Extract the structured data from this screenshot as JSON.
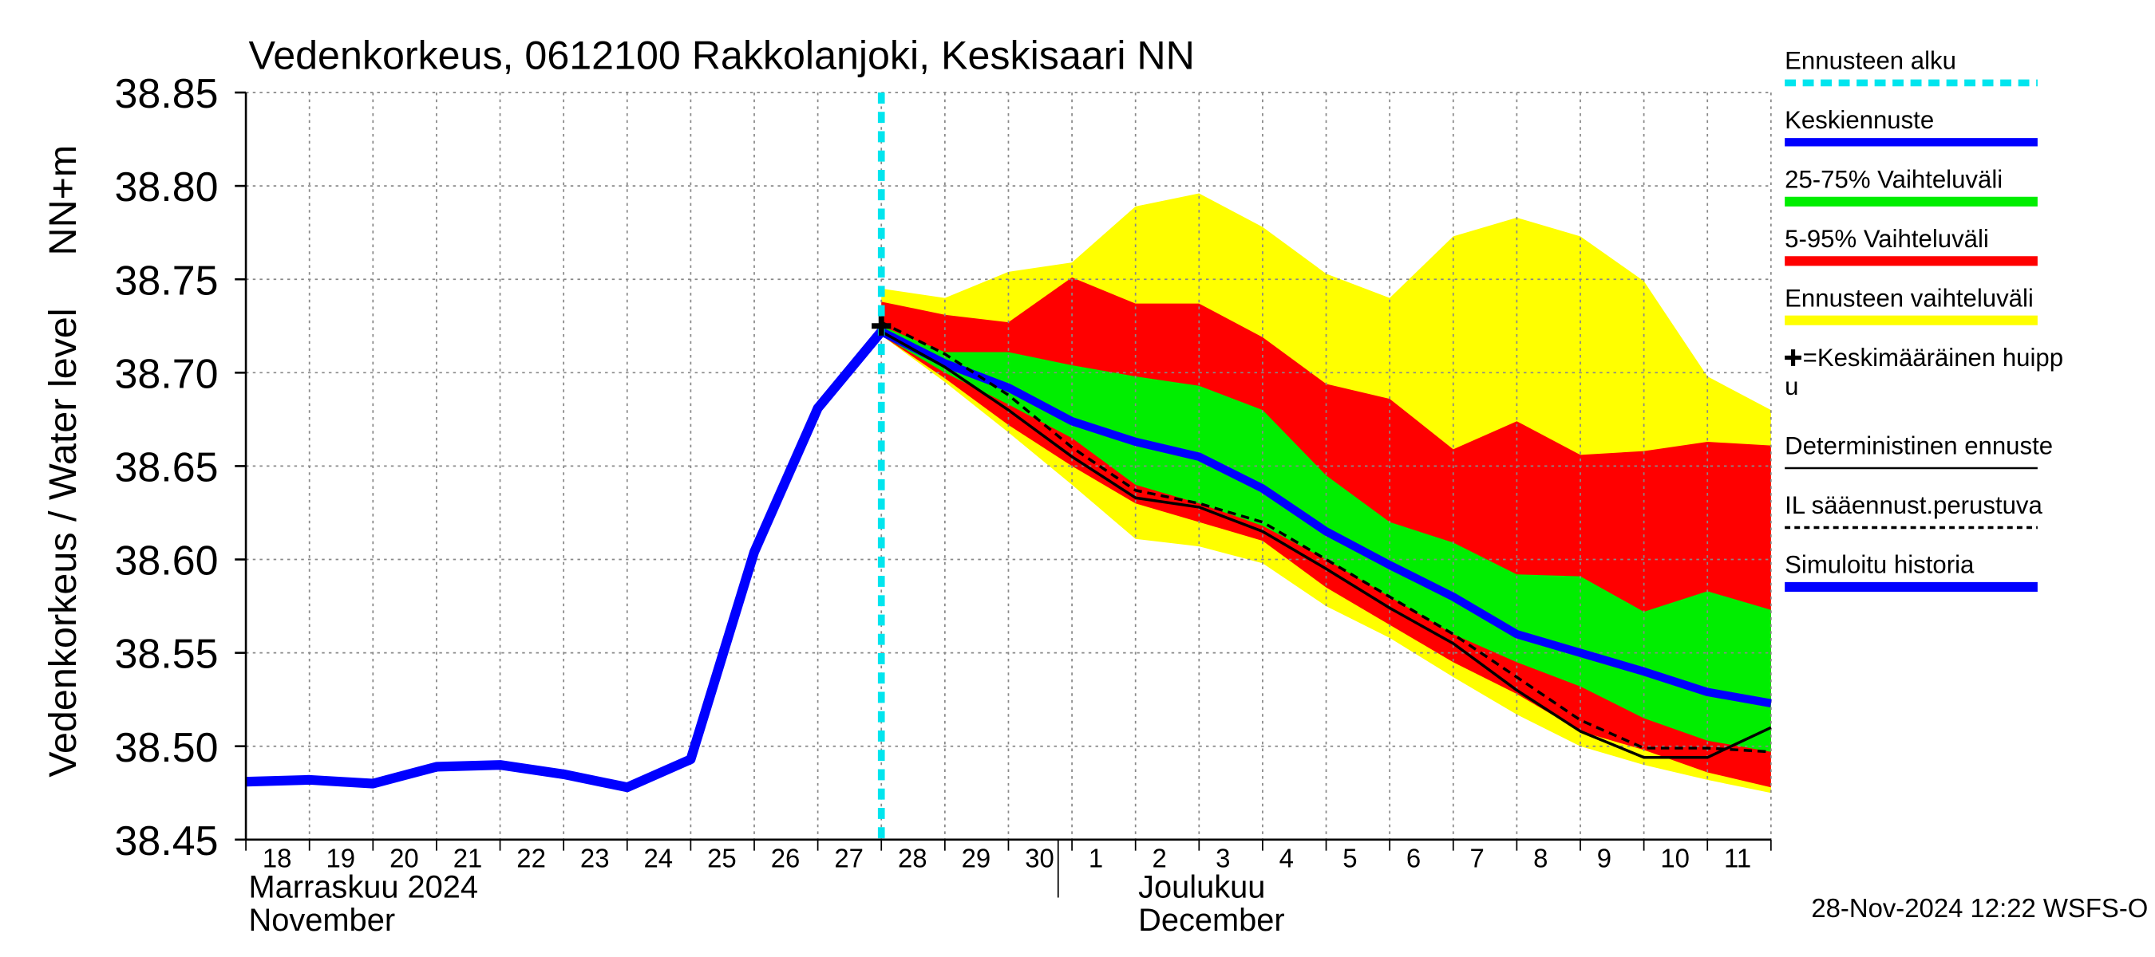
{
  "chart_data": {
    "type": "line",
    "title": "Vedenkorkeus, 0612100 Rakkolanjoki, Keskisaari NN",
    "y_label": "Vedenkorkeus / Water level",
    "y_unit": "NN+m",
    "footer": "28-Nov-2024 12:22 WSFS-O",
    "categories": [
      "18",
      "19",
      "20",
      "21",
      "22",
      "23",
      "24",
      "25",
      "26",
      "27",
      "28",
      "29",
      "30",
      "1",
      "2",
      "3",
      "4",
      "5",
      "6",
      "7",
      "8",
      "9",
      "10",
      "11",
      null
    ],
    "months": [
      {
        "at": "18",
        "lines": [
          "Marraskuu 2024",
          "November"
        ]
      },
      {
        "at": "1",
        "lines": [
          "Joulukuu",
          "December"
        ]
      }
    ],
    "ylim": [
      38.45,
      38.85
    ],
    "yticks": [
      38.45,
      {
        "value": 38.5,
        "label": "38.50"
      },
      38.55,
      {
        "value": 38.6,
        "label": "38.60"
      },
      38.65,
      {
        "value": 38.7,
        "label": "38.70"
      },
      38.75,
      {
        "value": 38.8,
        "label": "38.80"
      },
      38.85
    ],
    "grid": true,
    "forecast_start": {
      "name": "Ennusteen alku",
      "at": "28",
      "color": "#00e5ee"
    },
    "peak": {
      "name": [
        "=Keskimääräinen huipp",
        "u"
      ],
      "at": "28",
      "value": 38.725,
      "color": "#000000"
    },
    "bands": [
      {
        "name": "Ennusteen vaihteluväli",
        "color": "#ffff00",
        "upper": [
          null,
          null,
          null,
          null,
          null,
          null,
          null,
          null,
          null,
          null,
          38.745,
          38.74,
          38.754,
          38.759,
          38.789,
          38.796,
          38.778,
          38.753,
          38.74,
          38.773,
          38.783,
          38.773,
          38.749,
          38.698,
          38.68
        ],
        "lower": [
          null,
          null,
          null,
          null,
          null,
          null,
          null,
          null,
          null,
          null,
          38.72,
          38.695,
          38.668,
          38.64,
          38.611,
          38.607,
          38.598,
          38.575,
          38.558,
          38.537,
          38.517,
          38.5,
          38.49,
          38.482,
          38.475
        ]
      },
      {
        "name": "5-95% Vaihteluväli",
        "color": "#ff0000",
        "upper": [
          null,
          null,
          null,
          null,
          null,
          null,
          null,
          null,
          null,
          null,
          38.738,
          38.731,
          38.727,
          38.751,
          38.737,
          38.737,
          38.719,
          38.694,
          38.686,
          38.659,
          38.674,
          38.656,
          38.658,
          38.663,
          38.661
        ],
        "lower": [
          null,
          null,
          null,
          null,
          null,
          null,
          null,
          null,
          null,
          null,
          38.72,
          38.697,
          38.672,
          38.65,
          38.63,
          38.62,
          38.61,
          38.585,
          38.565,
          38.545,
          38.528,
          38.508,
          38.498,
          38.486,
          38.478
        ]
      },
      {
        "name": "25-75% Vaihteluväli",
        "color": "#00ee00",
        "upper": [
          null,
          null,
          null,
          null,
          null,
          null,
          null,
          null,
          null,
          null,
          38.725,
          38.711,
          38.711,
          38.704,
          38.698,
          38.693,
          38.68,
          38.645,
          38.62,
          38.609,
          38.592,
          38.591,
          38.572,
          38.583,
          38.573
        ],
        "lower": [
          null,
          null,
          null,
          null,
          null,
          null,
          null,
          null,
          null,
          null,
          38.72,
          38.7,
          38.683,
          38.665,
          38.64,
          38.63,
          38.618,
          38.6,
          38.58,
          38.56,
          38.545,
          38.532,
          38.515,
          38.503,
          38.497
        ]
      }
    ],
    "series": [
      {
        "name": "Keskiennuste",
        "color": "#0000ff",
        "width": 6,
        "dash": "none",
        "values": [
          null,
          null,
          null,
          null,
          null,
          null,
          null,
          null,
          null,
          null,
          38.722,
          38.705,
          38.692,
          38.674,
          38.663,
          38.655,
          38.638,
          38.615,
          38.597,
          38.58,
          38.56,
          38.55,
          38.54,
          38.529,
          38.523
        ]
      },
      {
        "name": "Deterministinen ennuste",
        "color": "#000000",
        "width": 2,
        "dash": "none",
        "values": [
          null,
          null,
          null,
          null,
          null,
          null,
          null,
          null,
          null,
          null,
          38.722,
          38.703,
          38.68,
          38.655,
          38.633,
          38.628,
          38.615,
          38.595,
          38.574,
          38.555,
          38.53,
          38.508,
          38.494,
          38.494,
          38.51
        ]
      },
      {
        "name": "IL sääennust.perustuva",
        "color": "#000000",
        "width": 2,
        "dash": "6,4",
        "values": [
          null,
          null,
          null,
          null,
          null,
          null,
          null,
          null,
          null,
          null,
          38.727,
          38.71,
          38.688,
          38.66,
          38.637,
          38.63,
          38.62,
          38.6,
          38.58,
          38.56,
          38.537,
          38.514,
          38.499,
          38.499,
          38.497
        ]
      },
      {
        "name": "Simuloitu historia",
        "color": "#0000ff",
        "width": 7,
        "dash": "none",
        "values": [
          38.481,
          38.482,
          38.48,
          38.489,
          38.49,
          38.485,
          38.478,
          38.493,
          38.604,
          38.681,
          38.722,
          null,
          null,
          null,
          null,
          null,
          null,
          null,
          null,
          null,
          null,
          null,
          null,
          null,
          null
        ]
      }
    ]
  }
}
